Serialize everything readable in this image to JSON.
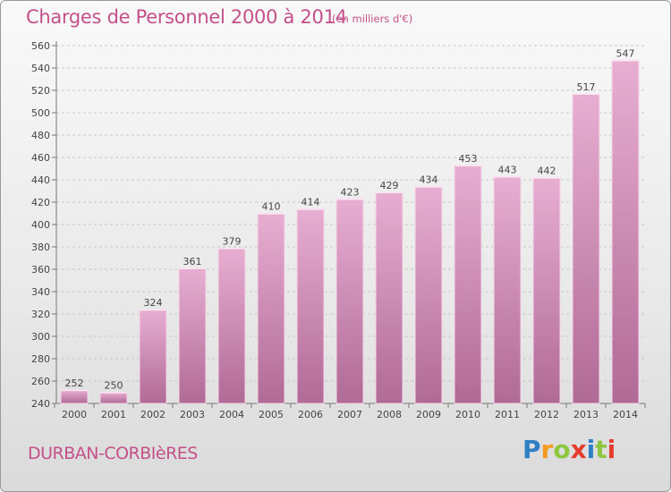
{
  "title": "Charges de Personnel 2000 à 2014",
  "unit": "(en milliers d'€)",
  "commune": "DURBAN-CORBIèRES",
  "logo": {
    "letters": [
      "P",
      "r",
      "o",
      "x",
      "i",
      "t",
      "i"
    ],
    "colors": [
      "#2f7fc4",
      "#f39a1f",
      "#8dc63f",
      "#e63c2b",
      "#2f7fc4",
      "#8dc63f",
      "#e63c2b"
    ]
  },
  "colors": {
    "bar_top": "#e8aed2",
    "bar_bottom": "#b06a96",
    "text_accent": "#c4508a"
  },
  "chart_data": {
    "type": "bar",
    "title": "Charges de Personnel 2000 à 2014",
    "subtitle": "(en milliers d'€)",
    "categories": [
      "2000",
      "2001",
      "2002",
      "2003",
      "2004",
      "2005",
      "2006",
      "2007",
      "2008",
      "2009",
      "2010",
      "2011",
      "2012",
      "2013",
      "2014"
    ],
    "values": [
      252,
      250,
      324,
      361,
      379,
      410,
      414,
      423,
      429,
      434,
      453,
      443,
      442,
      517,
      547
    ],
    "ylim": [
      240,
      560
    ],
    "yticks": [
      240,
      260,
      280,
      300,
      320,
      340,
      360,
      380,
      400,
      420,
      440,
      460,
      480,
      500,
      520,
      540,
      560
    ],
    "grid": true,
    "data_labels": true
  }
}
